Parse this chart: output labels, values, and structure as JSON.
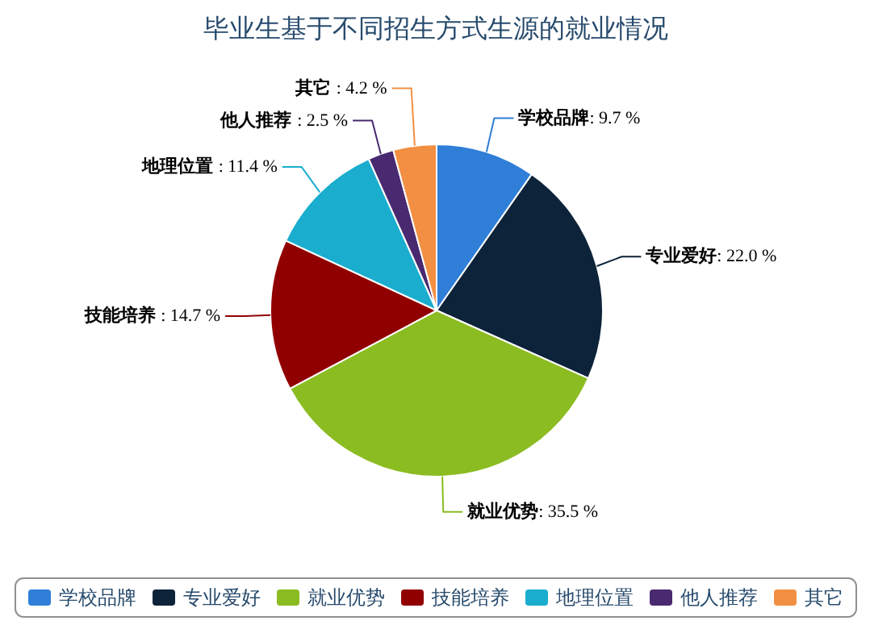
{
  "chart_data": {
    "type": "pie",
    "title": "毕业生基于不同招生方式生源的就业情况",
    "categories": [
      "学校品牌",
      "专业爱好",
      "就业优势",
      "技能培养",
      "地理位置",
      "他人推荐",
      "其它"
    ],
    "values": [
      9.7,
      22.0,
      35.5,
      14.7,
      11.4,
      2.5,
      4.2
    ],
    "value_labels": [
      ": 9.7 %",
      ": 22.0 %",
      ": 35.5 %",
      ": 14.7 %",
      ": 11.4 %",
      ": 2.5 %",
      ": 4.2 %"
    ],
    "colors": [
      "#2f7ed8",
      "#0d233a",
      "#8bbc21",
      "#910000",
      "#1aadce",
      "#492970",
      "#f28f43"
    ],
    "legend": "bottom"
  }
}
